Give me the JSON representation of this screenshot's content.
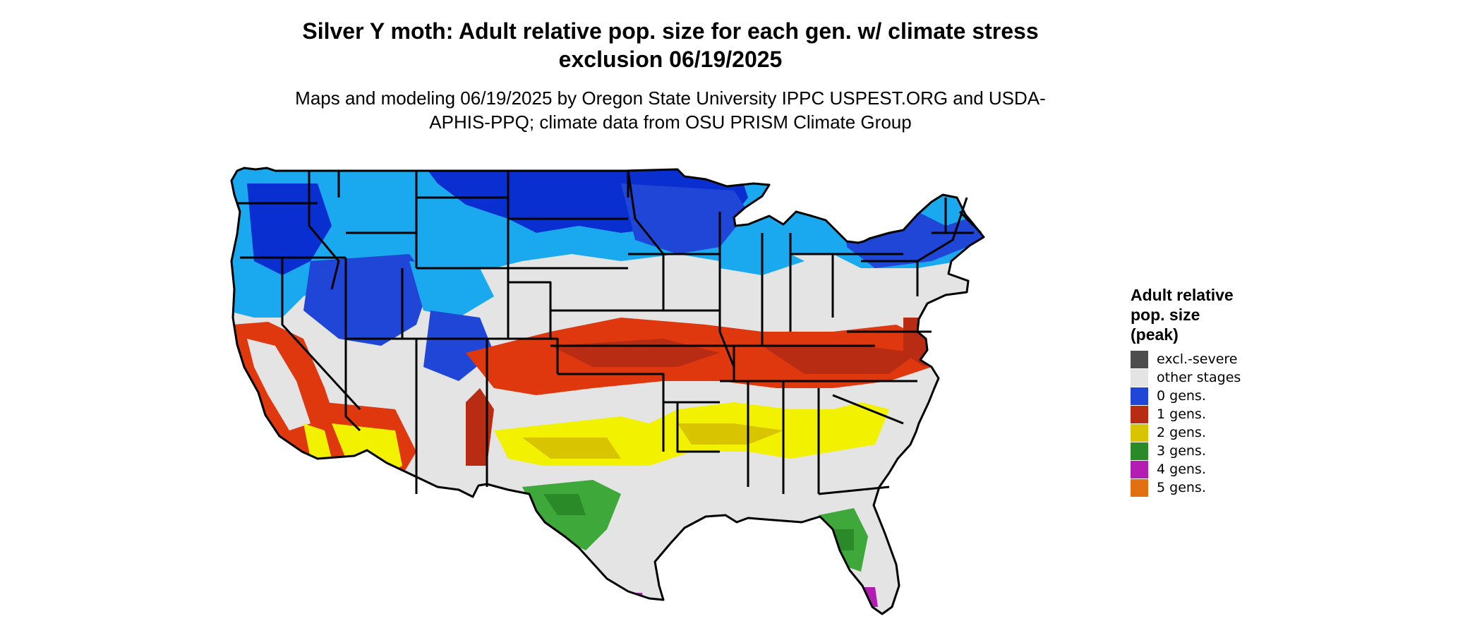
{
  "title": "Silver Y moth: Adult relative pop. size for each gen. w/ climate stress exclusion 06/19/2025",
  "subtitle": "Maps and modeling 06/19/2025 by Oregon State University IPPC USPEST.ORG and USDA-APHIS-PPQ; climate data from OSU PRISM Climate Group",
  "map": {
    "region": "Contiguous United States",
    "legend": {
      "title": "Adult relative\npop. size\n(peak)",
      "items": [
        {
          "label": "excl.-severe",
          "color": "#4d4d4d"
        },
        {
          "label": "other stages",
          "color": "#e4e4e4"
        },
        {
          "label": "0 gens.",
          "color": "#1f46d6"
        },
        {
          "label": "1 gens.",
          "color": "#b82c14"
        },
        {
          "label": "2 gens.",
          "color": "#d8c400"
        },
        {
          "label": "3 gens.",
          "color": "#2a8a28"
        },
        {
          "label": "4 gens.",
          "color": "#b21eb2"
        },
        {
          "label": "5 gens.",
          "color": "#e07010"
        }
      ]
    },
    "colors": {
      "cyan": "#1aa8ee",
      "blue_dark": "#0a2fd0",
      "red_bright": "#e0380e",
      "yellow_bright": "#f2f200",
      "green_bright": "#3fa83a",
      "state_line": "#000000"
    }
  }
}
